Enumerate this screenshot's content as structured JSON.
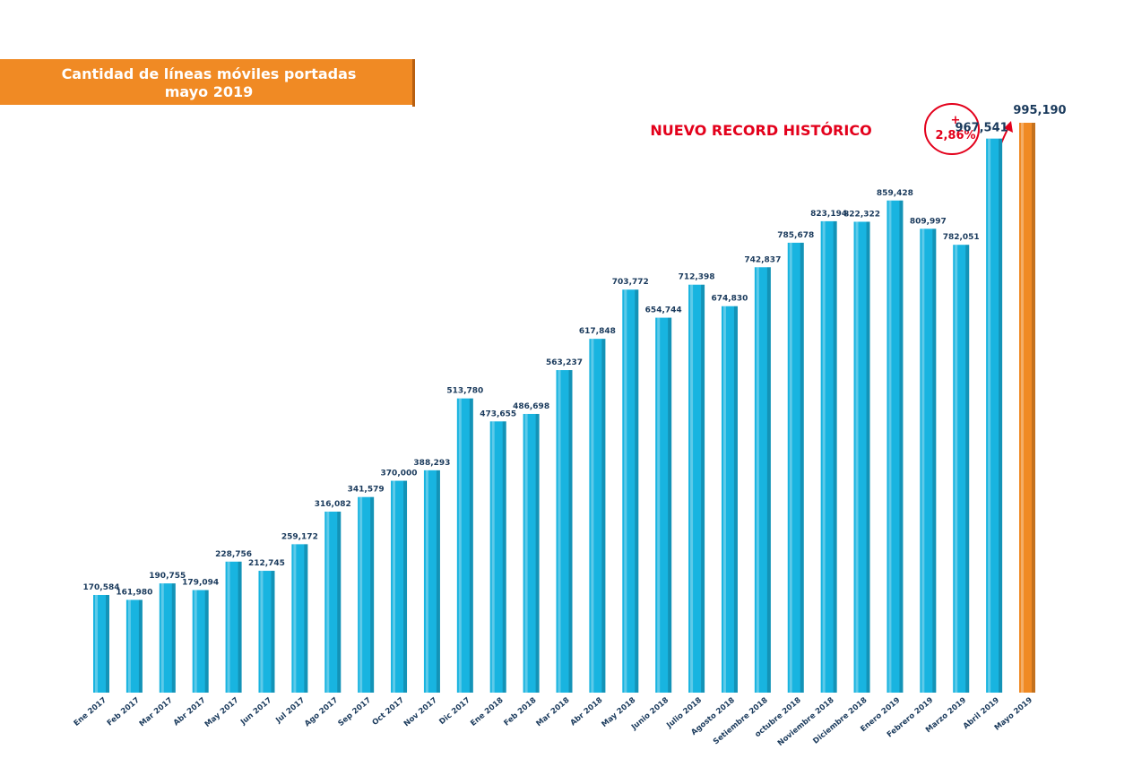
{
  "chart_data": {
    "type": "bar",
    "title": "Cantidad de líneas móviles portadas",
    "subtitle": "mayo 2019",
    "annotations": [
      "NUEVO RECORD HISTÓRICO",
      "+",
      "2,86%"
    ],
    "categories": [
      "Ene 2017",
      "Feb 2017",
      "Mar 2017",
      "Abr 2017",
      "May 2017",
      "Jun 2017",
      "Jul 2017",
      "Ago 2017",
      "Sep 2017",
      "Oct 2017",
      "Nov 2017",
      "Dic 2017",
      "Ene 2018",
      "Feb 2018",
      "Mar 2018",
      "Abr 2018",
      "May 2018",
      "Junio 2018",
      "Julio 2018",
      "Agosto 2018",
      "Setiembre 2018",
      "octubre 2018",
      "Noviembre 2018",
      "Diciembre 2018",
      "Enero 2019",
      "Febrero 2019",
      "Marzo 2019",
      "Abril 2019",
      "Mayo 2019"
    ],
    "values": [
      170584,
      161980,
      190755,
      179094,
      228756,
      212745,
      259172,
      316082,
      341579,
      370000,
      388293,
      513780,
      473655,
      486698,
      563237,
      617848,
      703772,
      654744,
      712398,
      674830,
      742837,
      785678,
      823194,
      822322,
      859428,
      809997,
      782051,
      967541,
      995190
    ],
    "value_labels": [
      "170,584",
      "161,980",
      "190,755",
      "179,094",
      "228,756",
      "212,745",
      "259,172",
      "316,082",
      "341,579",
      "370,000",
      "388,293",
      "513,780",
      "473,655",
      "486,698",
      "563,237",
      "617,848",
      "703,772",
      "654,744",
      "712,398",
      "674,830",
      "742,837",
      "785,678",
      "823,194",
      "822,322",
      "859,428",
      "809,997",
      "782,051",
      "967,541",
      "995,190"
    ],
    "colors": [
      "#18b4e0",
      "#18b4e0",
      "#18b4e0",
      "#18b4e0",
      "#18b4e0",
      "#18b4e0",
      "#18b4e0",
      "#18b4e0",
      "#18b4e0",
      "#18b4e0",
      "#18b4e0",
      "#18b4e0",
      "#18b4e0",
      "#18b4e0",
      "#18b4e0",
      "#18b4e0",
      "#18b4e0",
      "#18b4e0",
      "#18b4e0",
      "#18b4e0",
      "#18b4e0",
      "#18b4e0",
      "#18b4e0",
      "#18b4e0",
      "#18b4e0",
      "#18b4e0",
      "#18b4e0",
      "#18b4e0",
      "#f08a24"
    ]
  }
}
